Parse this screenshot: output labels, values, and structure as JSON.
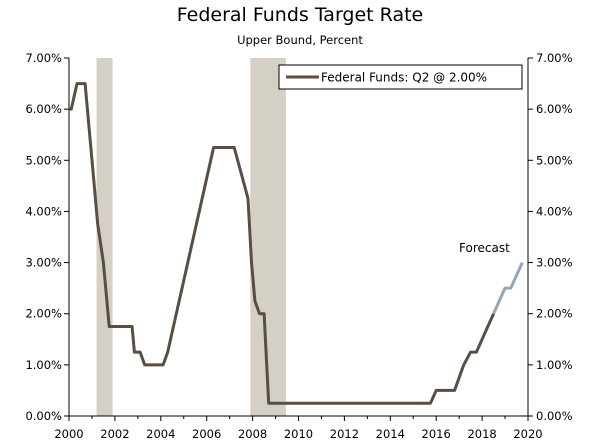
{
  "chart_data": {
    "type": "line",
    "title": "Federal Funds Target Rate",
    "subtitle": "Upper Bound, Percent",
    "xlabel": "",
    "ylabel": "",
    "xlim": [
      2000,
      2020
    ],
    "ylim": [
      0,
      7
    ],
    "x_ticks": [
      2000,
      2002,
      2004,
      2006,
      2008,
      2010,
      2012,
      2014,
      2016,
      2018,
      2020
    ],
    "x_tick_labels": [
      "2000",
      "2002",
      "2004",
      "2006",
      "2008",
      "2010",
      "2012",
      "2014",
      "2016",
      "2018",
      "2020"
    ],
    "y_ticks": [
      0,
      1,
      2,
      3,
      4,
      5,
      6,
      7
    ],
    "y_tick_labels": [
      "0.00%",
      "1.00%",
      "2.00%",
      "3.00%",
      "4.00%",
      "5.00%",
      "6.00%",
      "7.00%"
    ],
    "y_axes": "left and right (mirrored)",
    "recessions": [
      {
        "start": 2001.2,
        "end": 2001.9
      },
      {
        "start": 2007.9,
        "end": 2009.45
      }
    ],
    "series": [
      {
        "name": "Federal Funds: Q2 @ 2.00%",
        "color": "#5a4d42",
        "x": [
          2000.0,
          2000.1,
          2000.35,
          2000.7,
          2001.0,
          2001.25,
          2001.5,
          2001.75,
          2002.0,
          2002.3,
          2002.75,
          2002.85,
          2003.1,
          2003.3,
          2003.5,
          2003.9,
          2004.1,
          2004.3,
          2006.3,
          2007.2,
          2007.65,
          2007.8,
          2007.95,
          2008.1,
          2008.3,
          2008.5,
          2008.7,
          2015.75,
          2016.0,
          2016.8,
          2017.2,
          2017.5,
          2017.75,
          2018.0,
          2018.25,
          2018.5
        ],
        "values": [
          6.0,
          6.0,
          6.5,
          6.5,
          5.0,
          3.75,
          3.0,
          1.75,
          1.75,
          1.75,
          1.75,
          1.25,
          1.25,
          1.0,
          1.0,
          1.0,
          1.0,
          1.25,
          5.25,
          5.25,
          4.5,
          4.25,
          3.0,
          2.25,
          2.0,
          2.0,
          0.25,
          0.25,
          0.5,
          0.5,
          1.0,
          1.25,
          1.25,
          1.5,
          1.75,
          2.0
        ]
      },
      {
        "name": "Forecast",
        "color": "#8fa6bd",
        "x": [
          2018.5,
          2018.75,
          2019.0,
          2019.25,
          2019.5,
          2019.75
        ],
        "values": [
          2.0,
          2.25,
          2.5,
          2.5,
          2.75,
          3.0
        ]
      }
    ],
    "legend": {
      "entries": [
        "Federal Funds: Q2 @ 2.00%"
      ],
      "placement": "top-right"
    },
    "annotations": [
      {
        "text": "Forecast"
      }
    ],
    "colors": {
      "actual": "#5a4d42",
      "forecast": "#8fa6bd",
      "recession": "#d5d0c6",
      "axis": "#000000"
    }
  }
}
